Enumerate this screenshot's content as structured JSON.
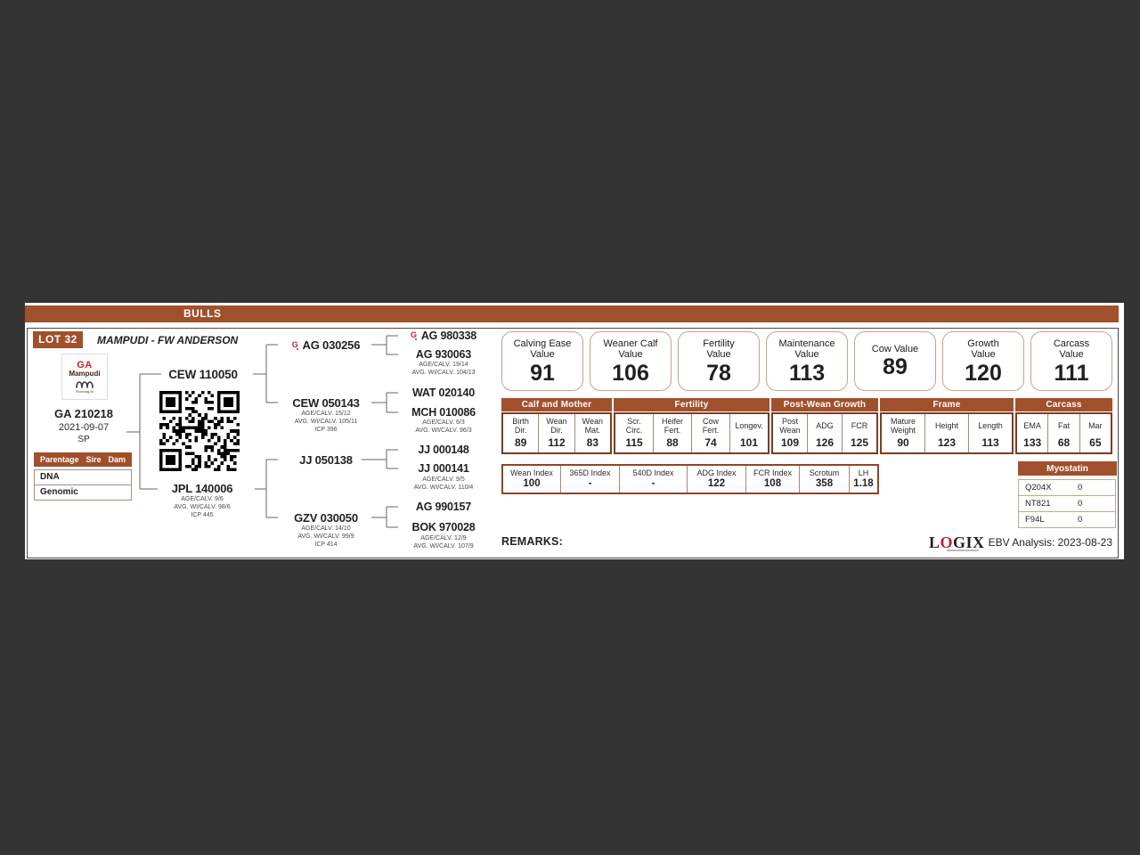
{
  "header": {
    "section_title": "BULLS"
  },
  "lot": {
    "number": "LOT 32",
    "breeder": "MAMPUDI - FW ANDERSON"
  },
  "subject": {
    "logo": {
      "line1": "GA",
      "line2": "Mampudi",
      "caption": "Running M"
    },
    "id": "GA 210218",
    "birth_date": "2021-09-07",
    "status": "SP",
    "parentage": {
      "headers": [
        "Parentage",
        "Sire",
        "Dam"
      ],
      "rows": [
        "DNA",
        "Genomic"
      ]
    }
  },
  "pedigree": {
    "sire": {
      "id": "CEW 110050"
    },
    "dam": {
      "id": "JPL 140006",
      "lines": [
        "AGE/CALV. 9/6",
        "AVG. WI/CALV. 98/6",
        "ICP 445"
      ]
    },
    "gen2": [
      {
        "id": "AG 030256",
        "flag": "G"
      },
      {
        "id": "CEW 050143",
        "lines": [
          "AGE/CALV. 15/12",
          "AVG. WI/CALV. 105/11",
          "ICP 396"
        ]
      },
      {
        "id": "JJ 050138"
      },
      {
        "id": "GZV 030050",
        "lines": [
          "AGE/CALV. 14/10",
          "AVG. WI/CALV. 99/9",
          "ICP 414"
        ]
      }
    ],
    "gen3": [
      {
        "id": "AG 980338",
        "flag": "G"
      },
      {
        "id": "AG 930063",
        "lines": [
          "AGE/CALV. 19/14",
          "AVG. WI/CALV. 104/13"
        ]
      },
      {
        "id": "WAT 020140"
      },
      {
        "id": "MCH 010086",
        "lines": [
          "AGE/CALV. 6/3",
          "AVG. WI/CALV. 96/3"
        ]
      },
      {
        "id": "JJ 000148"
      },
      {
        "id": "JJ 000141",
        "lines": [
          "AGE/CALV. 9/5",
          "AVG. WI/CALV. 110/4"
        ]
      },
      {
        "id": "AG 990157"
      },
      {
        "id": "BOK 970028",
        "lines": [
          "AGE/CALV. 12/9",
          "AVG. WI/CALV. 107/9"
        ]
      }
    ]
  },
  "value_boxes": [
    {
      "label": "Calving Ease\nValue",
      "value": "91"
    },
    {
      "label": "Weaner Calf\nValue",
      "value": "106"
    },
    {
      "label": "Fertility\nValue",
      "value": "78"
    },
    {
      "label": "Maintenance\nValue",
      "value": "113"
    },
    {
      "label": "Cow Value",
      "value": "89"
    },
    {
      "label": "Growth\nValue",
      "value": "120"
    },
    {
      "label": "Carcass\nValue",
      "value": "111"
    }
  ],
  "ebv": {
    "groups": [
      {
        "name": "Calf and Mother",
        "cols": [
          {
            "label": "Birth\nDir.",
            "value": "89"
          },
          {
            "label": "Wean\nDir.",
            "value": "112"
          },
          {
            "label": "Wean\nMat.",
            "value": "83"
          }
        ]
      },
      {
        "name": "Fertility",
        "cols": [
          {
            "label": "Scr.\nCirc.",
            "value": "115"
          },
          {
            "label": "Heifer\nFert.",
            "value": "88"
          },
          {
            "label": "Cow\nFert.",
            "value": "74"
          },
          {
            "label": "Longev.",
            "value": "101"
          }
        ]
      },
      {
        "name": "Post-Wean Growth",
        "cols": [
          {
            "label": "Post\nWean",
            "value": "109"
          },
          {
            "label": "ADG",
            "value": "126"
          },
          {
            "label": "FCR",
            "value": "125"
          }
        ]
      },
      {
        "name": "Frame",
        "cols": [
          {
            "label": "Mature\nWeight",
            "value": "90"
          },
          {
            "label": "Height",
            "value": "123"
          },
          {
            "label": "Length",
            "value": "113"
          }
        ]
      },
      {
        "name": "Carcass",
        "cols": [
          {
            "label": "EMA",
            "value": "133"
          },
          {
            "label": "Fat",
            "value": "68"
          },
          {
            "label": "Mar",
            "value": "65"
          }
        ]
      }
    ]
  },
  "index_table": [
    {
      "label": "Wean Index",
      "value": "100"
    },
    {
      "label": "365D Index",
      "value": "-"
    },
    {
      "label": "540D Index",
      "value": "-"
    },
    {
      "label": "ADG Index",
      "value": "122"
    },
    {
      "label": "FCR Index",
      "value": "108"
    },
    {
      "label": "Scrotum",
      "value": "358"
    },
    {
      "label": "LH",
      "value": "1.18"
    }
  ],
  "myostatin": {
    "title": "Myostatin",
    "rows": [
      {
        "gene": "Q204X",
        "value": "0"
      },
      {
        "gene": "NT821",
        "value": "0"
      },
      {
        "gene": "F94L",
        "value": "0"
      }
    ]
  },
  "footer": {
    "remarks_label": "REMARKS:",
    "logix_parts": [
      "L",
      "O",
      "GIX"
    ],
    "analysis": "EBV Analysis: 2023-08-23"
  },
  "colors": {
    "accent_brown": "#a1502c",
    "flag_red": "#c41e24",
    "dark_bg": "#343434"
  },
  "icons": {
    "pedigree_flag": "breed-performance-flag",
    "logo_mark": "running-m-brand"
  }
}
